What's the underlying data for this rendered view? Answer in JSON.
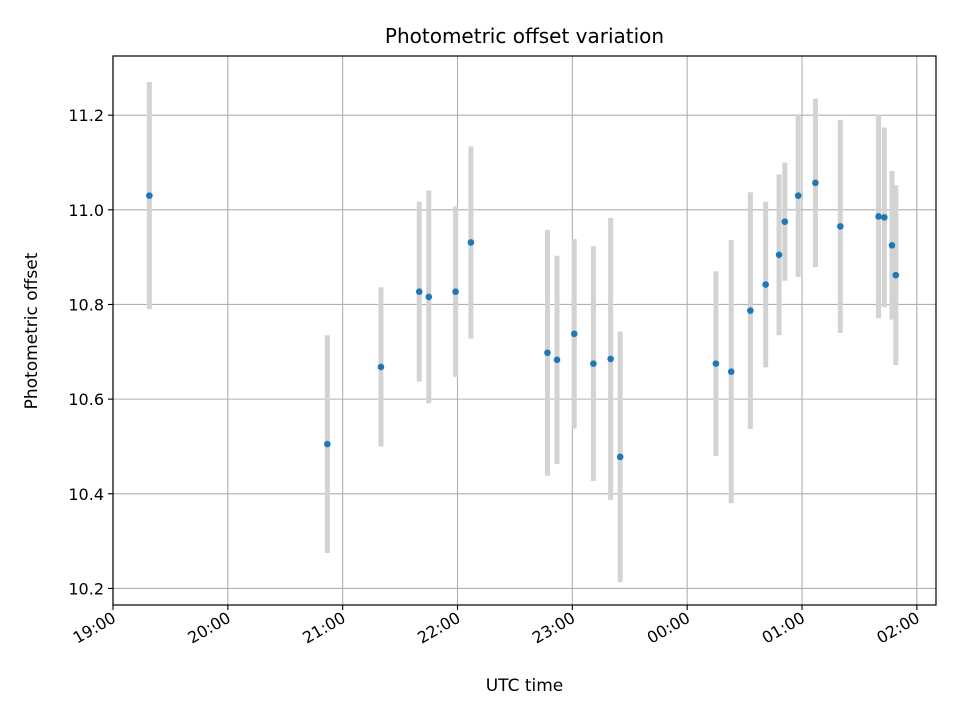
{
  "chart_data": {
    "type": "scatter",
    "title": "Photometric offset variation",
    "xlabel": "UTC time",
    "ylabel": "Photometric offset",
    "x_ticks": [
      "19:00",
      "20:00",
      "21:00",
      "22:00",
      "23:00",
      "00:00",
      "01:00",
      "02:00"
    ],
    "xlim": [
      "19:00",
      "02:10"
    ],
    "y_ticks": [
      10.2,
      10.4,
      10.6,
      10.8,
      11.0,
      11.2
    ],
    "ylim": [
      10.165,
      11.325
    ],
    "grid": true,
    "marker_color": "#1f77b4",
    "errorbar_color": "#d3d3d3",
    "series": [
      {
        "points": [
          {
            "x": "19:19",
            "y": 11.03,
            "err": 0.24
          },
          {
            "x": "20:52",
            "y": 10.505,
            "err": 0.23
          },
          {
            "x": "21:20",
            "y": 10.668,
            "err": 0.168
          },
          {
            "x": "21:40",
            "y": 10.827,
            "err": 0.19
          },
          {
            "x": "21:45",
            "y": 10.816,
            "err": 0.225
          },
          {
            "x": "21:59",
            "y": 10.827,
            "err": 0.18
          },
          {
            "x": "22:07",
            "y": 10.931,
            "err": 0.203
          },
          {
            "x": "22:47",
            "y": 10.698,
            "err": 0.26
          },
          {
            "x": "22:52",
            "y": 10.683,
            "err": 0.22
          },
          {
            "x": "23:01",
            "y": 10.738,
            "err": 0.2
          },
          {
            "x": "23:11",
            "y": 10.675,
            "err": 0.248
          },
          {
            "x": "23:20",
            "y": 10.685,
            "err": 0.298
          },
          {
            "x": "23:25",
            "y": 10.478,
            "err": 0.265
          },
          {
            "x": "00:15",
            "y": 10.675,
            "err": 0.195
          },
          {
            "x": "00:23",
            "y": 10.658,
            "err": 0.278
          },
          {
            "x": "00:33",
            "y": 10.787,
            "err": 0.25
          },
          {
            "x": "00:41",
            "y": 10.842,
            "err": 0.175
          },
          {
            "x": "00:48",
            "y": 10.905,
            "err": 0.17
          },
          {
            "x": "00:51",
            "y": 10.975,
            "err": 0.125
          },
          {
            "x": "00:58",
            "y": 11.03,
            "err": 0.172
          },
          {
            "x": "01:07",
            "y": 11.057,
            "err": 0.178
          },
          {
            "x": "01:20",
            "y": 10.965,
            "err": 0.225
          },
          {
            "x": "01:40",
            "y": 10.986,
            "err": 0.215
          },
          {
            "x": "01:43",
            "y": 10.984,
            "err": 0.19
          },
          {
            "x": "01:47",
            "y": 10.925,
            "err": 0.157
          },
          {
            "x": "01:49",
            "y": 10.862,
            "err": 0.19
          }
        ]
      }
    ]
  }
}
